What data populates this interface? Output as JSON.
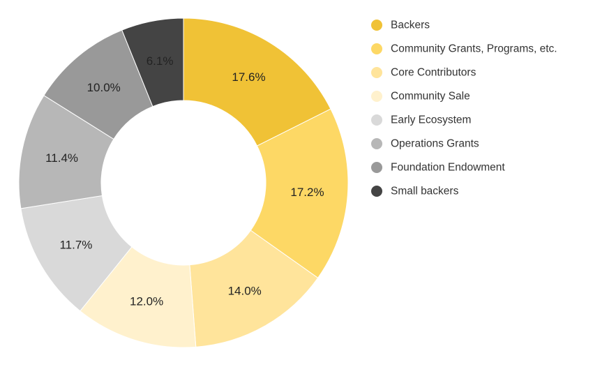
{
  "chart_data": {
    "type": "pie",
    "donut": true,
    "title": "",
    "legend_position": "right",
    "slices": [
      {
        "label": "Backers",
        "value": 17.6,
        "display": "17.6%",
        "color": "#F0C236"
      },
      {
        "label": "Community Grants, Programs, etc.",
        "value": 17.2,
        "display": "17.2%",
        "color": "#FDD865"
      },
      {
        "label": "Core Contributors",
        "value": 14.0,
        "display": "14.0%",
        "color": "#FFE49B"
      },
      {
        "label": "Community Sale",
        "value": 12.0,
        "display": "12.0%",
        "color": "#FFF1CD"
      },
      {
        "label": "Early Ecosystem",
        "value": 11.7,
        "display": "11.7%",
        "color": "#D9D9D9"
      },
      {
        "label": "Operations Grants",
        "value": 11.4,
        "display": "11.4%",
        "color": "#B7B7B7"
      },
      {
        "label": "Foundation Endowment",
        "value": 10.0,
        "display": "10.0%",
        "color": "#999999"
      },
      {
        "label": "Small backers",
        "value": 6.1,
        "display": "6.1%",
        "color": "#444444"
      }
    ]
  }
}
